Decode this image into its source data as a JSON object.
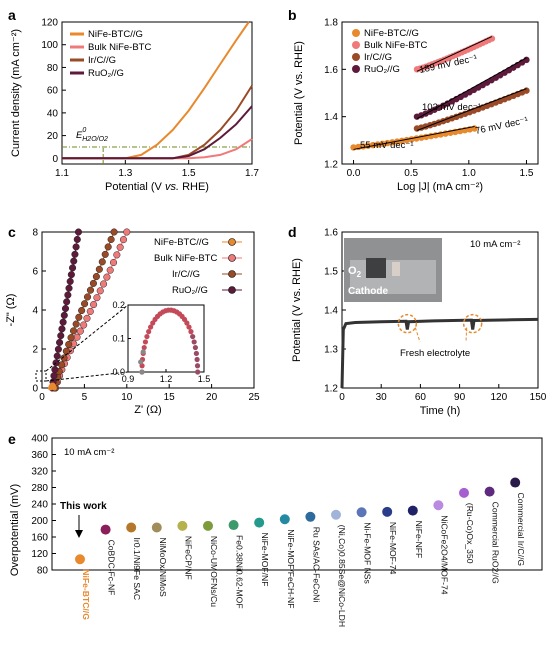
{
  "panels": {
    "a": "a",
    "b": "b",
    "c": "c",
    "d": "d",
    "e": "e"
  },
  "chart_data": [
    {
      "panel": "a",
      "type": "line",
      "xlabel_parts": [
        "Potential (V ",
        "vs.",
        " RHE)"
      ],
      "ylabel": "Current density (mA cm⁻²)",
      "xlim": [
        1.1,
        1.7
      ],
      "ylim": [
        -5,
        120
      ],
      "xticks": [
        "1.1",
        "1.3",
        "1.5",
        "1.7"
      ],
      "yticks": [
        "0",
        "20",
        "40",
        "60",
        "80",
        "100",
        "120"
      ],
      "annotation_main": "E",
      "annotation_sup": "0",
      "annotation_sub": "H2O/O2",
      "reference_potential": 1.23,
      "reference_current": 10,
      "colors": {
        "reference": "#6f8a1e"
      },
      "series": [
        {
          "name": "NiFe-BTC//G",
          "color": "#e8892e",
          "points": [
            [
              1.1,
              0
            ],
            [
              1.3,
              0
            ],
            [
              1.35,
              3
            ],
            [
              1.4,
              12
            ],
            [
              1.45,
              25
            ],
            [
              1.5,
              42
            ],
            [
              1.55,
              62
            ],
            [
              1.6,
              83
            ],
            [
              1.65,
              104
            ],
            [
              1.69,
              120
            ]
          ]
        },
        {
          "name": "Bulk NiFe-BTC",
          "color": "#f07a7a",
          "points": [
            [
              1.1,
              0
            ],
            [
              1.5,
              0
            ],
            [
              1.55,
              1
            ],
            [
              1.6,
              3
            ],
            [
              1.65,
              8
            ],
            [
              1.7,
              17
            ]
          ]
        },
        {
          "name": "Ir/C//G",
          "color": "#9a4a26",
          "points": [
            [
              1.1,
              0
            ],
            [
              1.45,
              0
            ],
            [
              1.5,
              3
            ],
            [
              1.55,
              12
            ],
            [
              1.6,
              25
            ],
            [
              1.65,
              42
            ],
            [
              1.7,
              64
            ]
          ]
        },
        {
          "name": "RuO₂//G",
          "color": "#5e1a3a",
          "points": [
            [
              1.1,
              0
            ],
            [
              1.45,
              0
            ],
            [
              1.5,
              2
            ],
            [
              1.55,
              8
            ],
            [
              1.6,
              18
            ],
            [
              1.65,
              30
            ],
            [
              1.7,
              46
            ]
          ]
        }
      ]
    },
    {
      "panel": "b",
      "type": "scatter",
      "xlabel": "Log |J| (mA cm⁻²)",
      "ylabel": "Potential (V vs. RHE)",
      "xlim": [
        -0.1,
        1.6
      ],
      "ylim": [
        1.2,
        1.8
      ],
      "xticks": [
        "0.0",
        "0.5",
        "1.0",
        "1.5"
      ],
      "yticks": [
        "1.2",
        "1.4",
        "1.6",
        "1.8"
      ],
      "series": [
        {
          "name": "NiFe-BTC//G",
          "color": "#e8892e",
          "x_range": [
            0.0,
            1.05
          ],
          "y_range": [
            1.27,
            1.35
          ],
          "slope": "55 mV dec⁻¹"
        },
        {
          "name": "Bulk NiFe-BTC",
          "color": "#f07a7a",
          "x_range": [
            0.55,
            1.2
          ],
          "y_range": [
            1.6,
            1.73
          ],
          "slope": "189 mV dec⁻¹"
        },
        {
          "name": "Ir/C//G",
          "color": "#9a4a26",
          "x_range": [
            0.55,
            1.5
          ],
          "y_range": [
            1.35,
            1.51
          ],
          "slope": "76 mV dec⁻¹"
        },
        {
          "name": "RuO₂//G",
          "color": "#5e1a3a",
          "x_range": [
            0.55,
            1.5
          ],
          "y_range": [
            1.4,
            1.64
          ],
          "slope": "103 mV dec⁻¹"
        }
      ]
    },
    {
      "panel": "c",
      "type": "scatter",
      "xlabel": "Z' (Ω)",
      "ylabel": "-Z\" (Ω)",
      "xlim": [
        0,
        25
      ],
      "ylim": [
        0,
        8
      ],
      "xticks": [
        "0",
        "5",
        "10",
        "15",
        "20",
        "25"
      ],
      "yticks": [
        "0",
        "2",
        "4",
        "6",
        "8"
      ],
      "series": [
        {
          "name": "NiFe-BTC//G",
          "color": "#e8892e",
          "points": [
            [
              1.0,
              0
            ],
            [
              1.1,
              0.1
            ],
            [
              1.25,
              0.18
            ],
            [
              1.35,
              0.1
            ],
            [
              1.45,
              0
            ]
          ]
        },
        {
          "name": "Bulk NiFe-BTC",
          "color": "#f07a7a",
          "points": [
            [
              1.6,
              0
            ],
            [
              2.2,
              0.8
            ],
            [
              3,
              1.6
            ],
            [
              4,
              2.5
            ],
            [
              5,
              3.3
            ],
            [
              6,
              4.2
            ],
            [
              7,
              5.1
            ],
            [
              8,
              6
            ],
            [
              9,
              7
            ],
            [
              10,
              8
            ]
          ]
        },
        {
          "name": "Ir/C//G",
          "color": "#9a4a26",
          "points": [
            [
              1.5,
              0
            ],
            [
              2,
              0.8
            ],
            [
              2.8,
              1.8
            ],
            [
              3.6,
              2.8
            ],
            [
              4.5,
              3.8
            ],
            [
              5.5,
              4.8
            ],
            [
              6.5,
              5.8
            ],
            [
              7.5,
              6.9
            ],
            [
              8.5,
              8
            ]
          ]
        },
        {
          "name": "RuO₂//G",
          "color": "#5e1a3a",
          "points": [
            [
              1.2,
              0
            ],
            [
              1.5,
              0.9
            ],
            [
              1.9,
              1.9
            ],
            [
              2.3,
              2.9
            ],
            [
              2.7,
              3.9
            ],
            [
              3.1,
              4.9
            ],
            [
              3.5,
              5.9
            ],
            [
              3.9,
              6.9
            ],
            [
              4.3,
              8
            ]
          ]
        }
      ],
      "inset": {
        "xlim": [
          0.9,
          1.5
        ],
        "ylim": [
          0,
          0.2
        ],
        "xticks": [
          "0.9",
          "1.2",
          "1.5"
        ],
        "yticks": [
          "0.0",
          "0.1",
          "0.2"
        ]
      }
    },
    {
      "panel": "d",
      "type": "line",
      "xlabel": "Time (h)",
      "ylabel": "Potential (V vs. RHE)",
      "xlim": [
        0,
        150
      ],
      "ylim": [
        1.2,
        1.6
      ],
      "xticks": [
        "0",
        "30",
        "60",
        "90",
        "120",
        "150"
      ],
      "yticks": [
        "1.2",
        "1.3",
        "1.4",
        "1.5",
        "1.6"
      ],
      "current_label": "10 mA cm⁻²",
      "photo_text_main": "O",
      "photo_text_sub": "2",
      "photo_text_2": "Cathode",
      "annotation": "Fresh electrolyte",
      "refresh_times": [
        50,
        100
      ],
      "series": [
        {
          "name": "",
          "color": "#333333",
          "points": [
            [
              0,
              1.2
            ],
            [
              1,
              1.35
            ],
            [
              3,
              1.365
            ],
            [
              10,
              1.368
            ],
            [
              30,
              1.37
            ],
            [
              49,
              1.371
            ],
            [
              50,
              1.35
            ],
            [
              51,
              1.37
            ],
            [
              70,
              1.372
            ],
            [
              99,
              1.374
            ],
            [
              100,
              1.35
            ],
            [
              101,
              1.373
            ],
            [
              130,
              1.375
            ],
            [
              150,
              1.376
            ]
          ]
        }
      ]
    },
    {
      "panel": "e",
      "type": "scatter",
      "ylabel": "Overpotential (mV)",
      "ylim": [
        80,
        400
      ],
      "yticks": [
        "80",
        "120",
        "160",
        "200",
        "240",
        "280",
        "320",
        "360",
        "400"
      ],
      "current_label": "10 mA cm⁻²",
      "this_work_label": "This work",
      "categories": [
        "NiFe-BTC//G",
        "CoBDC-Fc-NF",
        "Ir0.1/Ni9Fe SAC",
        "NiMoOx/NiMoS",
        "NiFeCP/NF",
        "NiCo-UMOFNs/Cu",
        "Fe0.38Ni0.62-MOF",
        "NiFe-MOF/NF",
        "NiFe-MOF/FeCH-NF",
        "Ru SAs/AC-FeCoNi",
        "(Ni,Co)0.85Se@NiCo-LDH",
        "Ni-Fe-MOF NSs",
        "NiFe-MOF-74",
        "NiFe-NFF",
        "NiCoFe2O4/MOF-74",
        "(Ru-Co)Ox_350",
        "Commercial RuO2//G",
        "Commercial Ir/C//G"
      ],
      "values": [
        106,
        178,
        183,
        183,
        187,
        187,
        189,
        195,
        203,
        209,
        214,
        220,
        221,
        224,
        237,
        267,
        270,
        292
      ],
      "colors": [
        "#e8892e",
        "#8a1f5c",
        "#b5782a",
        "#a08d5a",
        "#b5b24d",
        "#7c9b3c",
        "#3d9a6a",
        "#239a8c",
        "#238aa1",
        "#2f6a9d",
        "#9fb4d8",
        "#5c74b8",
        "#2a3d8a",
        "#1f2266",
        "#b98ae0",
        "#a65fd0",
        "#5d2a7e",
        "#2a1a4a"
      ]
    }
  ]
}
